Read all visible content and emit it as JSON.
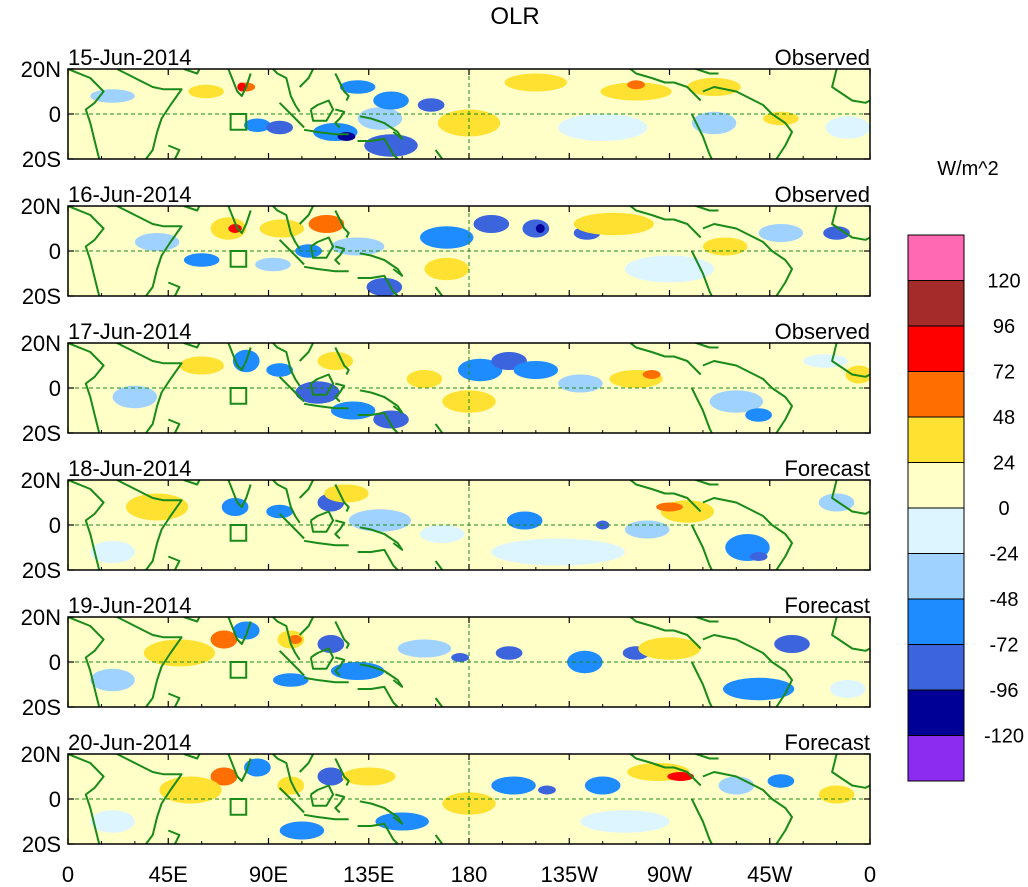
{
  "chart_data": {
    "type": "heatmap",
    "title": "OLR",
    "units_label": "W/m^2",
    "x_ticks": [
      "0",
      "45E",
      "90E",
      "135E",
      "180",
      "135W",
      "90W",
      "45W",
      "0"
    ],
    "x_values": [
      0,
      45,
      90,
      135,
      180,
      225,
      270,
      315,
      360
    ],
    "x_range": [
      0,
      360
    ],
    "y_ticks": [
      "20N",
      "0",
      "20S"
    ],
    "y_values": [
      20,
      0,
      -20
    ],
    "y_range": [
      -20,
      20
    ],
    "colorbar": {
      "colors": [
        "#8c2cf0",
        "#000096",
        "#3c64dc",
        "#1e8cff",
        "#a0d2ff",
        "#dcf5ff",
        "#ffffc8",
        "#ffe132",
        "#ff6e00",
        "#ff0000",
        "#a52a2a",
        "#ff69b4"
      ],
      "labels": [
        "-120",
        "-96",
        "-72",
        "-48",
        "-24",
        "0",
        "24",
        "48",
        "72",
        "96",
        "120"
      ]
    },
    "panels": [
      {
        "date": "15-Jun-2014",
        "kind": "Observed"
      },
      {
        "date": "16-Jun-2014",
        "kind": "Observed"
      },
      {
        "date": "17-Jun-2014",
        "kind": "Observed"
      },
      {
        "date": "18-Jun-2014",
        "kind": "Forecast"
      },
      {
        "date": "19-Jun-2014",
        "kind": "Forecast"
      },
      {
        "date": "20-Jun-2014",
        "kind": "Forecast"
      }
    ],
    "anomaly_blobs": [
      [
        [
          80,
          12,
          4,
          2,
          "#ff6e00"
        ],
        [
          78,
          12,
          2,
          2,
          "#ff0000"
        ],
        [
          62,
          10,
          8,
          3,
          "#ffe132"
        ],
        [
          85,
          -5,
          6,
          3,
          "#1e8cff"
        ],
        [
          95,
          -6,
          6,
          3,
          "#3c64dc"
        ],
        [
          120,
          -8,
          10,
          4,
          "#1e8cff"
        ],
        [
          125,
          -10,
          4,
          2,
          "#000096"
        ],
        [
          145,
          -14,
          12,
          5,
          "#3c64dc"
        ],
        [
          140,
          -2,
          10,
          5,
          "#a0d2ff"
        ],
        [
          180,
          -4,
          14,
          6,
          "#ffe132"
        ],
        [
          145,
          6,
          8,
          4,
          "#1e8cff"
        ],
        [
          163,
          4,
          6,
          3,
          "#3c64dc"
        ],
        [
          210,
          14,
          14,
          4,
          "#ffe132"
        ],
        [
          255,
          10,
          16,
          4,
          "#ffe132"
        ],
        [
          255,
          13,
          4,
          2,
          "#ff6e00"
        ],
        [
          290,
          12,
          12,
          4,
          "#ffe132"
        ],
        [
          290,
          -4,
          10,
          5,
          "#a0d2ff"
        ],
        [
          320,
          -2,
          8,
          3,
          "#ffe132"
        ],
        [
          20,
          8,
          10,
          3,
          "#a0d2ff"
        ],
        [
          350,
          -6,
          10,
          5,
          "#dcf5ff"
        ],
        [
          240,
          -6,
          20,
          6,
          "#dcf5ff"
        ],
        [
          130,
          12,
          8,
          3,
          "#1e8cff"
        ]
      ],
      [
        [
          72,
          10,
          8,
          5,
          "#ffe132"
        ],
        [
          75,
          10,
          3,
          2,
          "#ff0000"
        ],
        [
          96,
          10,
          10,
          4,
          "#ffe132"
        ],
        [
          116,
          12,
          8,
          4,
          "#ff6e00"
        ],
        [
          108,
          0,
          6,
          3,
          "#1e8cff"
        ],
        [
          92,
          -6,
          8,
          3,
          "#a0d2ff"
        ],
        [
          142,
          -16,
          8,
          4,
          "#3c64dc"
        ],
        [
          170,
          -8,
          10,
          5,
          "#ffe132"
        ],
        [
          170,
          6,
          12,
          5,
          "#1e8cff"
        ],
        [
          190,
          12,
          8,
          4,
          "#3c64dc"
        ],
        [
          210,
          10,
          6,
          4,
          "#3c64dc"
        ],
        [
          212,
          10,
          2,
          2,
          "#000096"
        ],
        [
          233,
          8,
          6,
          3,
          "#3c64dc"
        ],
        [
          245,
          12,
          18,
          5,
          "#ffe132"
        ],
        [
          295,
          2,
          10,
          4,
          "#ffe132"
        ],
        [
          320,
          8,
          10,
          4,
          "#a0d2ff"
        ],
        [
          345,
          8,
          6,
          3,
          "#3c64dc"
        ],
        [
          130,
          2,
          12,
          4,
          "#a0d2ff"
        ],
        [
          40,
          4,
          10,
          4,
          "#a0d2ff"
        ],
        [
          60,
          -4,
          8,
          3,
          "#1e8cff"
        ],
        [
          270,
          -8,
          20,
          6,
          "#dcf5ff"
        ]
      ],
      [
        [
          80,
          12,
          6,
          5,
          "#1e8cff"
        ],
        [
          95,
          8,
          6,
          3,
          "#1e8cff"
        ],
        [
          120,
          12,
          8,
          4,
          "#ffe132"
        ],
        [
          112,
          -2,
          10,
          5,
          "#3c64dc"
        ],
        [
          128,
          -10,
          10,
          4,
          "#1e8cff"
        ],
        [
          145,
          -14,
          8,
          4,
          "#3c64dc"
        ],
        [
          160,
          4,
          8,
          4,
          "#ffe132"
        ],
        [
          180,
          -6,
          12,
          5,
          "#ffe132"
        ],
        [
          185,
          8,
          10,
          5,
          "#1e8cff"
        ],
        [
          198,
          12,
          8,
          4,
          "#3c64dc"
        ],
        [
          210,
          8,
          10,
          4,
          "#1e8cff"
        ],
        [
          230,
          2,
          10,
          4,
          "#a0d2ff"
        ],
        [
          255,
          4,
          12,
          4,
          "#ffe132"
        ],
        [
          262,
          6,
          4,
          2,
          "#ff6e00"
        ],
        [
          300,
          -6,
          12,
          5,
          "#a0d2ff"
        ],
        [
          310,
          -12,
          6,
          3,
          "#1e8cff"
        ],
        [
          355,
          6,
          6,
          4,
          "#ffe132"
        ],
        [
          60,
          10,
          10,
          4,
          "#ffe132"
        ],
        [
          30,
          -4,
          10,
          5,
          "#a0d2ff"
        ],
        [
          340,
          12,
          10,
          3,
          "#dcf5ff"
        ]
      ],
      [
        [
          40,
          8,
          14,
          6,
          "#ffe132"
        ],
        [
          75,
          8,
          6,
          4,
          "#1e8cff"
        ],
        [
          95,
          6,
          6,
          3,
          "#1e8cff"
        ],
        [
          118,
          10,
          6,
          4,
          "#3c64dc"
        ],
        [
          125,
          14,
          10,
          4,
          "#ffe132"
        ],
        [
          140,
          2,
          14,
          5,
          "#a0d2ff"
        ],
        [
          168,
          -4,
          10,
          4,
          "#dcf5ff"
        ],
        [
          205,
          2,
          8,
          4,
          "#1e8cff"
        ],
        [
          240,
          0,
          3,
          2,
          "#3c64dc"
        ],
        [
          260,
          -2,
          10,
          4,
          "#a0d2ff"
        ],
        [
          278,
          6,
          12,
          5,
          "#ffe132"
        ],
        [
          270,
          8,
          6,
          2,
          "#ff6e00"
        ],
        [
          305,
          -10,
          10,
          6,
          "#1e8cff"
        ],
        [
          310,
          -14,
          4,
          2,
          "#3c64dc"
        ],
        [
          345,
          10,
          8,
          4,
          "#a0d2ff"
        ],
        [
          220,
          -12,
          30,
          6,
          "#dcf5ff"
        ],
        [
          20,
          -12,
          10,
          5,
          "#dcf5ff"
        ]
      ],
      [
        [
          70,
          10,
          6,
          4,
          "#ff6e00"
        ],
        [
          80,
          14,
          6,
          4,
          "#1e8cff"
        ],
        [
          100,
          10,
          6,
          4,
          "#ffe132"
        ],
        [
          102,
          10,
          3,
          2,
          "#ff6e00"
        ],
        [
          118,
          8,
          6,
          4,
          "#3c64dc"
        ],
        [
          130,
          -4,
          12,
          4,
          "#1e8cff"
        ],
        [
          100,
          -8,
          8,
          3,
          "#1e8cff"
        ],
        [
          160,
          6,
          12,
          4,
          "#a0d2ff"
        ],
        [
          176,
          2,
          4,
          2,
          "#3c64dc"
        ],
        [
          198,
          4,
          6,
          3,
          "#3c64dc"
        ],
        [
          235,
          0,
          4,
          3,
          "#000096"
        ],
        [
          232,
          0,
          8,
          5,
          "#1e8cff"
        ],
        [
          255,
          4,
          6,
          3,
          "#3c64dc"
        ],
        [
          270,
          6,
          14,
          5,
          "#ffe132"
        ],
        [
          325,
          8,
          8,
          4,
          "#3c64dc"
        ],
        [
          310,
          -12,
          16,
          5,
          "#1e8cff"
        ],
        [
          50,
          4,
          16,
          6,
          "#ffe132"
        ],
        [
          20,
          -8,
          10,
          5,
          "#a0d2ff"
        ],
        [
          350,
          -12,
          8,
          4,
          "#dcf5ff"
        ]
      ],
      [
        [
          70,
          10,
          6,
          4,
          "#ff6e00"
        ],
        [
          85,
          14,
          6,
          4,
          "#1e8cff"
        ],
        [
          100,
          6,
          6,
          4,
          "#ffe132"
        ],
        [
          118,
          10,
          6,
          4,
          "#3c64dc"
        ],
        [
          135,
          10,
          12,
          4,
          "#ffe132"
        ],
        [
          150,
          -10,
          12,
          4,
          "#1e8cff"
        ],
        [
          180,
          -2,
          12,
          5,
          "#ffe132"
        ],
        [
          200,
          6,
          10,
          4,
          "#1e8cff"
        ],
        [
          215,
          4,
          4,
          2,
          "#3c64dc"
        ],
        [
          240,
          6,
          8,
          4,
          "#1e8cff"
        ],
        [
          265,
          12,
          14,
          4,
          "#ffe132"
        ],
        [
          275,
          10,
          6,
          2,
          "#ff0000"
        ],
        [
          300,
          6,
          8,
          4,
          "#a0d2ff"
        ],
        [
          320,
          8,
          6,
          3,
          "#1e8cff"
        ],
        [
          345,
          2,
          8,
          4,
          "#ffe132"
        ],
        [
          55,
          4,
          14,
          6,
          "#ffe132"
        ],
        [
          105,
          -14,
          10,
          4,
          "#1e8cff"
        ],
        [
          250,
          -10,
          20,
          5,
          "#dcf5ff"
        ],
        [
          20,
          -10,
          10,
          5,
          "#dcf5ff"
        ]
      ]
    ]
  }
}
